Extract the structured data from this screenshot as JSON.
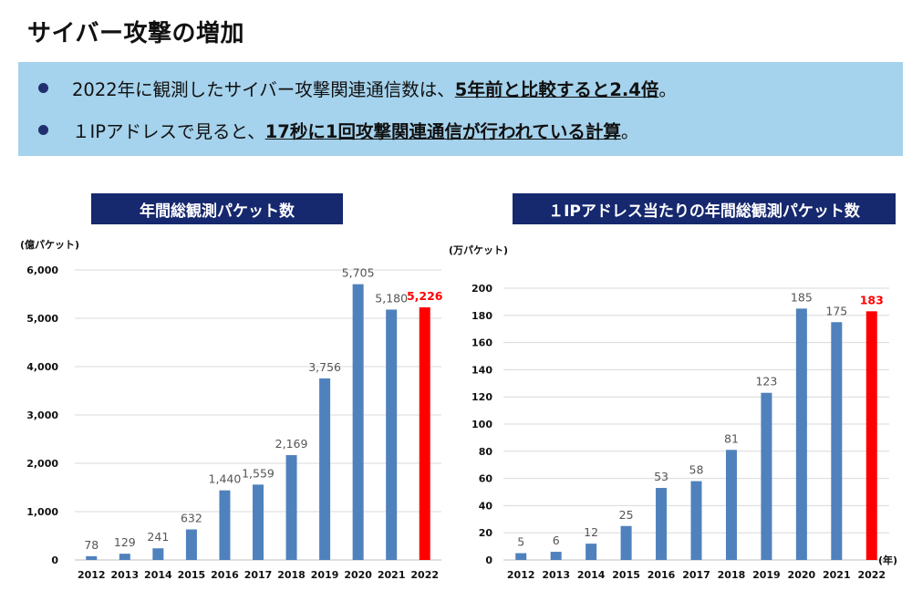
{
  "page": {
    "title": "サイバー攻撃の増加"
  },
  "summary": {
    "bullet1_prefix": "2022年に観測したサイバー攻撃関連通信数は、",
    "bullet1_emph": "5年前と比較すると2.4倍",
    "bullet1_suffix": "。",
    "bullet2_prefix": "１IPアドレスで見ると、",
    "bullet2_emph": "17秒に1回攻撃関連通信が行われている計算",
    "bullet2_suffix": "。"
  },
  "colors": {
    "bar": "#4f81bd",
    "highlight_bar": "#ff0000",
    "highlight_label": "#ff0000",
    "title_bar": "#16286e",
    "summary_bg": "#a5d2ec",
    "bullet": "#1f2f6f",
    "grid": "#d9d9d9"
  },
  "chart_data": [
    {
      "type": "bar",
      "title": "年間総観測パケット数",
      "ylabel": "(億パケット)",
      "xlabel": "",
      "categories": [
        "2012",
        "2013",
        "2014",
        "2015",
        "2016",
        "2017",
        "2018",
        "2019",
        "2020",
        "2021",
        "2022"
      ],
      "values": [
        78,
        129,
        241,
        632,
        1440,
        1559,
        2169,
        3756,
        5705,
        5180,
        5226
      ],
      "value_labels": [
        "78",
        "129",
        "241",
        "632",
        "1,440",
        "1,559",
        "2,169",
        "3,756",
        "5,705",
        "5,180",
        "5,226"
      ],
      "yticks": [
        0,
        1000,
        2000,
        3000,
        4000,
        5000,
        6000
      ],
      "ytick_labels": [
        "0",
        "1,000",
        "2,000",
        "3,000",
        "4,000",
        "5,000",
        "6,000"
      ],
      "ylim": [
        0,
        6000
      ],
      "grid": true,
      "highlight_category": "2022"
    },
    {
      "type": "bar",
      "title": "１IPアドレス当たりの年間総観測パケット数",
      "ylabel": "(万パケット)",
      "xlabel": "(年)",
      "categories": [
        "2012",
        "2013",
        "2014",
        "2015",
        "2016",
        "2017",
        "2018",
        "2019",
        "2020",
        "2021",
        "2022"
      ],
      "values": [
        5,
        6,
        12,
        25,
        53,
        58,
        81,
        123,
        185,
        175,
        183
      ],
      "value_labels": [
        "5",
        "6",
        "12",
        "25",
        "53",
        "58",
        "81",
        "123",
        "185",
        "175",
        "183"
      ],
      "yticks": [
        0,
        20,
        40,
        60,
        80,
        100,
        120,
        140,
        160,
        180,
        200
      ],
      "ytick_labels": [
        "0",
        "20",
        "40",
        "60",
        "80",
        "100",
        "120",
        "140",
        "160",
        "180",
        "200"
      ],
      "ylim": [
        0,
        200
      ],
      "grid": true,
      "highlight_category": "2022"
    }
  ]
}
